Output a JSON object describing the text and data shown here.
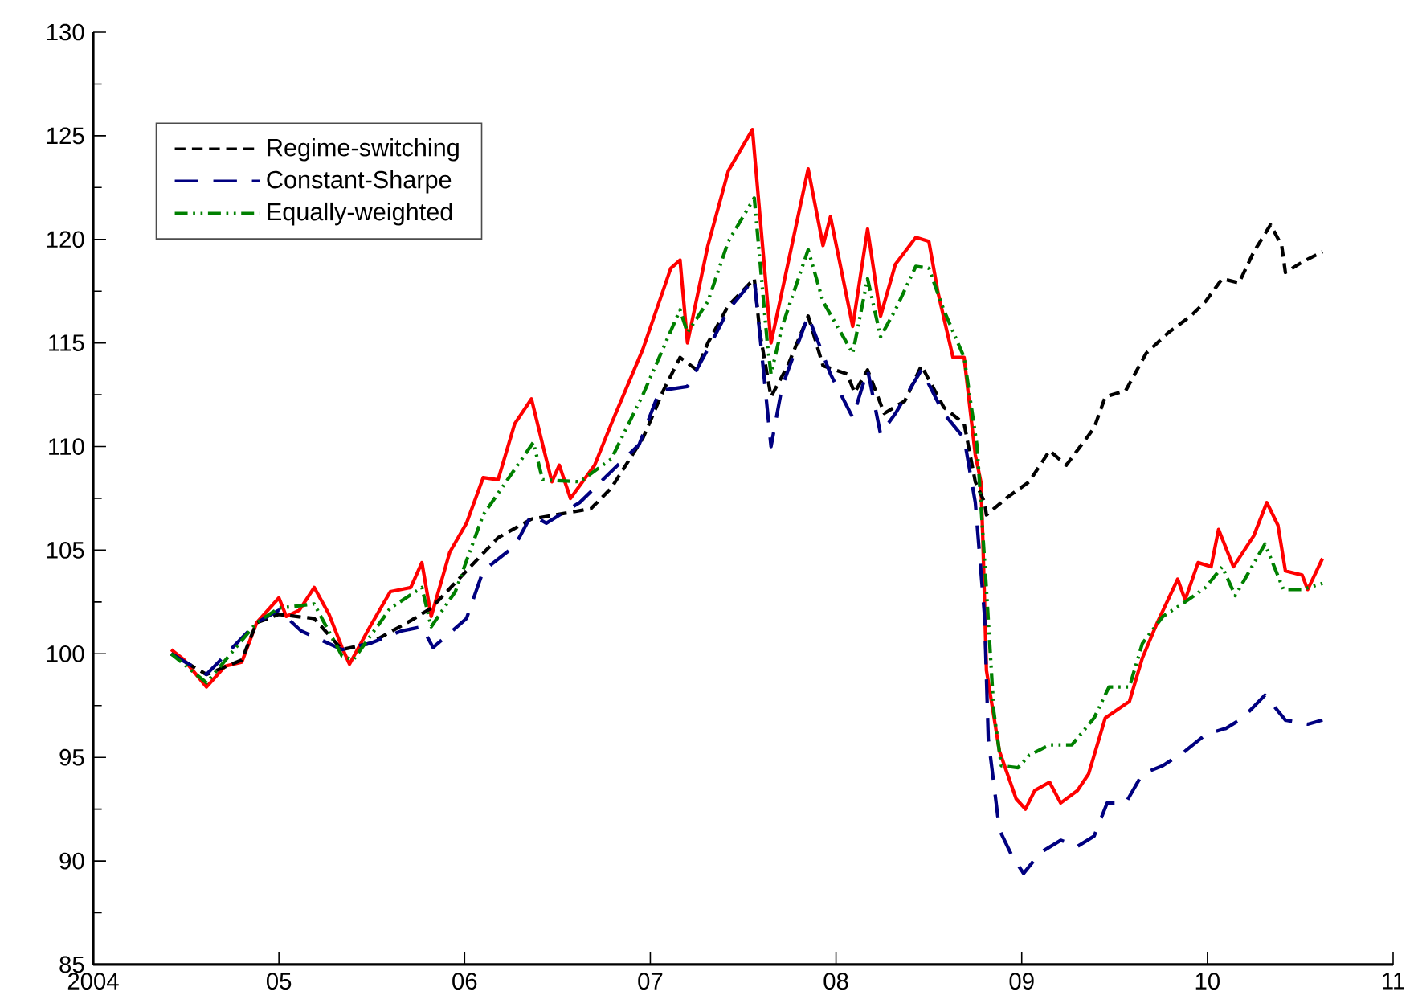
{
  "chart_data": {
    "type": "line",
    "xlim": [
      2004,
      2011
    ],
    "ylim": [
      85,
      130
    ],
    "xticks": [
      {
        "value": 2004,
        "label": "2004"
      },
      {
        "value": 2005,
        "label": "05"
      },
      {
        "value": 2006,
        "label": "06"
      },
      {
        "value": 2007,
        "label": "07"
      },
      {
        "value": 2008,
        "label": "08"
      },
      {
        "value": 2009,
        "label": "09"
      },
      {
        "value": 2010,
        "label": "10"
      },
      {
        "value": 2011,
        "label": "11"
      }
    ],
    "yticks": [
      85,
      {
        "value": 87.5,
        "label": null
      },
      90,
      {
        "value": 92.5,
        "label": null
      },
      95,
      {
        "value": 97.5,
        "label": null
      },
      100,
      {
        "value": 102.5,
        "label": null
      },
      105,
      {
        "value": 107.5,
        "label": null
      },
      110,
      {
        "value": 112.5,
        "label": null
      },
      115,
      {
        "value": 117.5,
        "label": null
      },
      120,
      {
        "value": 122.5,
        "label": null
      },
      125,
      {
        "value": 127.5,
        "label": null
      },
      130
    ],
    "grid": false,
    "legend": "top left",
    "marker": "none",
    "series": [
      {
        "color": "#ff0000",
        "line_style": "solid",
        "x": [
          2004.42,
          2004.49,
          2004.61,
          2004.71,
          2004.8,
          2004.88,
          2005.0,
          2005.04,
          2005.11,
          2005.19,
          2005.27,
          2005.34,
          2005.38,
          2005.49,
          2005.6,
          2005.71,
          2005.77,
          2005.82,
          2005.92,
          2006.01,
          2006.1,
          2006.18,
          2006.27,
          2006.36,
          2006.42,
          2006.47,
          2006.51,
          2006.57,
          2006.7,
          2006.79,
          2006.96,
          2007.11,
          2007.16,
          2007.2,
          2007.31,
          2007.42,
          2007.55,
          2007.65,
          2007.85,
          2007.93,
          2007.97,
          2008.09,
          2008.17,
          2008.24,
          2008.32,
          2008.43,
          2008.5,
          2008.55,
          2008.63,
          2008.69,
          2008.75,
          2008.78,
          2008.79,
          2008.81,
          2008.88,
          2008.97,
          2009.02,
          2009.07,
          2009.15,
          2009.21,
          2009.3,
          2009.36,
          2009.45,
          2009.58,
          2009.65,
          2009.73,
          2009.84,
          2009.88,
          2009.95,
          2010.02,
          2010.06,
          2010.14,
          2010.25,
          2010.32,
          2010.38,
          2010.42,
          2010.51,
          2010.54,
          2010.62
        ],
        "values": [
          100.2,
          99.7,
          98.4,
          99.4,
          99.6,
          101.5,
          102.7,
          101.8,
          102.1,
          103.2,
          101.9,
          100.3,
          99.5,
          101.3,
          103.0,
          103.2,
          104.4,
          101.8,
          104.9,
          106.3,
          108.5,
          108.4,
          111.1,
          112.3,
          110.1,
          108.3,
          109.1,
          107.5,
          109.1,
          111.1,
          114.7,
          118.6,
          119.0,
          115.0,
          119.7,
          123.3,
          125.3,
          115.0,
          123.4,
          119.7,
          121.1,
          115.8,
          120.5,
          116.3,
          118.8,
          120.1,
          119.9,
          117.4,
          114.3,
          114.3,
          109.6,
          108.3,
          105.7,
          99.2,
          95.3,
          93.0,
          92.5,
          93.4,
          93.8,
          92.8,
          93.4,
          94.2,
          96.9,
          97.7,
          99.8,
          101.5,
          103.6,
          102.6,
          104.4,
          104.2,
          106.0,
          104.2,
          105.7,
          107.3,
          106.2,
          104.0,
          103.8,
          103.1,
          104.6
        ]
      },
      {
        "name": "Regime-switching",
        "color": "#000000",
        "line_style": "dashed",
        "x": [
          2004.42,
          2004.61,
          2004.8,
          2004.88,
          2005.0,
          2005.19,
          2005.34,
          2005.49,
          2005.71,
          2005.82,
          2006.01,
          2006.18,
          2006.36,
          2006.68,
          2006.79,
          2006.96,
          2007.07,
          2007.16,
          2007.25,
          2007.31,
          2007.42,
          2007.56,
          2007.59,
          2007.65,
          2007.74,
          2007.85,
          2007.93,
          2008.06,
          2008.1,
          2008.17,
          2008.26,
          2008.37,
          2008.46,
          2008.58,
          2008.69,
          2008.75,
          2008.8,
          2008.81,
          2008.93,
          2009.04,
          2009.15,
          2009.24,
          2009.39,
          2009.45,
          2009.56,
          2009.67,
          2009.79,
          2009.91,
          2009.99,
          2010.08,
          2010.17,
          2010.25,
          2010.34,
          2010.4,
          2010.42,
          2010.51,
          2010.62
        ],
        "values": [
          100.0,
          99.0,
          99.7,
          101.5,
          101.9,
          101.7,
          100.2,
          100.5,
          101.6,
          102.2,
          104.0,
          105.6,
          106.5,
          107.0,
          108.0,
          110.4,
          112.7,
          114.3,
          113.7,
          115.0,
          116.8,
          118.1,
          115.5,
          112.4,
          113.9,
          116.3,
          113.9,
          113.5,
          112.6,
          113.7,
          111.6,
          112.2,
          113.9,
          111.9,
          111.1,
          108.3,
          107.3,
          106.7,
          107.6,
          108.3,
          109.8,
          109.1,
          110.9,
          112.4,
          112.7,
          114.5,
          115.5,
          116.3,
          117.0,
          118.1,
          117.9,
          119.4,
          120.7,
          119.7,
          118.4,
          118.9,
          119.4
        ]
      },
      {
        "name": "Constant-Sharpe",
        "color": "#000080",
        "line_style": "long dashed",
        "x": [
          2004.42,
          2004.61,
          2004.88,
          2005.0,
          2005.12,
          2005.34,
          2005.49,
          2005.66,
          2005.77,
          2005.83,
          2006.01,
          2006.1,
          2006.27,
          2006.36,
          2006.44,
          2006.62,
          2006.79,
          2006.94,
          2007.05,
          2007.2,
          2007.31,
          2007.42,
          2007.56,
          2007.65,
          2007.71,
          2007.85,
          2007.97,
          2008.09,
          2008.17,
          2008.24,
          2008.32,
          2008.46,
          2008.58,
          2008.69,
          2008.75,
          2008.8,
          2008.82,
          2008.88,
          2008.95,
          2009.01,
          2009.1,
          2009.21,
          2009.3,
          2009.39,
          2009.46,
          2009.56,
          2009.65,
          2009.76,
          2009.88,
          2009.99,
          2010.1,
          2010.19,
          2010.31,
          2010.42,
          2010.54,
          2010.62
        ],
        "values": [
          100.0,
          99.0,
          101.5,
          102.1,
          101.1,
          100.2,
          100.5,
          101.1,
          101.3,
          100.3,
          101.7,
          104.0,
          105.2,
          106.7,
          106.3,
          107.3,
          108.8,
          110.1,
          112.7,
          112.9,
          114.7,
          116.6,
          118.1,
          110.0,
          112.9,
          116.3,
          113.5,
          111.4,
          113.7,
          110.6,
          111.6,
          113.7,
          111.6,
          110.4,
          107.3,
          101.8,
          95.9,
          91.5,
          90.2,
          89.4,
          90.4,
          91.0,
          90.7,
          91.2,
          92.8,
          92.8,
          94.2,
          94.6,
          95.3,
          96.1,
          96.4,
          96.9,
          98.0,
          96.8,
          96.6,
          96.8
        ]
      },
      {
        "name": "Equally-weighted",
        "color": "#008000",
        "line_style": "dashdot",
        "x": [
          2004.42,
          2004.61,
          2004.88,
          2005.0,
          2005.19,
          2005.34,
          2005.4,
          2005.6,
          2005.77,
          2005.82,
          2005.95,
          2006.1,
          2006.37,
          2006.42,
          2006.62,
          2006.79,
          2006.96,
          2007.16,
          2007.2,
          2007.31,
          2007.42,
          2007.56,
          2007.63,
          2007.65,
          2007.71,
          2007.85,
          2007.93,
          2008.09,
          2008.17,
          2008.24,
          2008.32,
          2008.43,
          2008.5,
          2008.58,
          2008.69,
          2008.76,
          2008.81,
          2008.85,
          2008.89,
          2008.98,
          2009.04,
          2009.15,
          2009.27,
          2009.39,
          2009.47,
          2009.58,
          2009.65,
          2009.76,
          2009.88,
          2009.99,
          2010.08,
          2010.15,
          2010.31,
          2010.41,
          2010.51,
          2010.62
        ],
        "values": [
          100.0,
          98.6,
          101.5,
          102.2,
          102.4,
          99.9,
          99.7,
          102.2,
          103.2,
          101.3,
          103.0,
          106.7,
          110.2,
          108.4,
          108.3,
          109.4,
          112.5,
          116.6,
          115.5,
          117.0,
          119.9,
          122.0,
          115.0,
          113.5,
          115.8,
          119.5,
          117.0,
          114.5,
          118.1,
          115.3,
          116.6,
          118.7,
          118.6,
          116.6,
          114.3,
          110.0,
          103.1,
          97.2,
          94.6,
          94.5,
          95.1,
          95.6,
          95.6,
          96.9,
          98.4,
          98.4,
          100.5,
          101.8,
          102.5,
          103.2,
          104.2,
          102.8,
          105.3,
          103.1,
          103.1,
          103.4
        ]
      }
    ]
  }
}
